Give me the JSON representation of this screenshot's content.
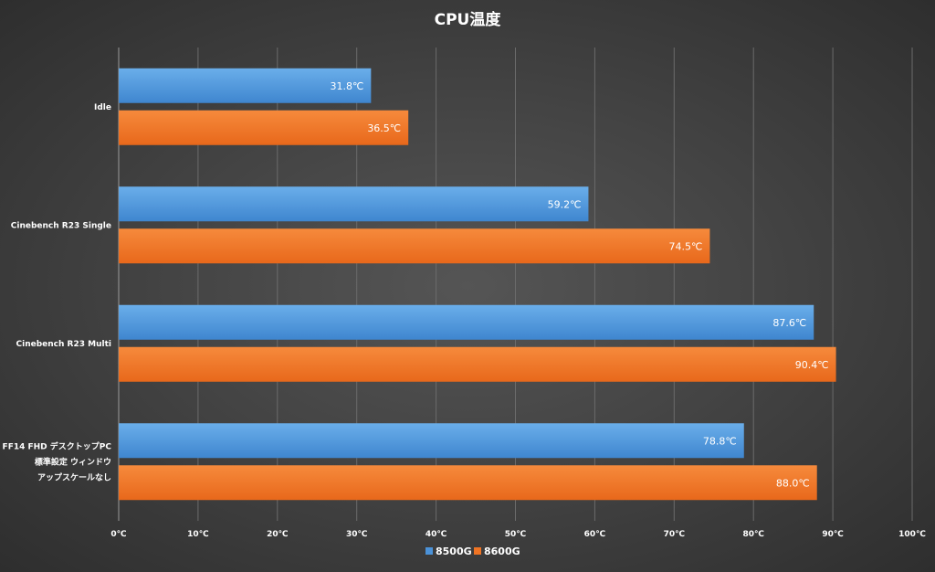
{
  "chart_data": {
    "type": "bar",
    "orientation": "horizontal",
    "title": "CPU温度",
    "categories": [
      [
        "Idle"
      ],
      [
        "Cinebench R23 Single"
      ],
      [
        "Cinebench R23 Multi"
      ],
      [
        "FF14 FHD デスクトップPC",
        "標準設定 ウィンドウ",
        "アップスケールなし"
      ]
    ],
    "series": [
      {
        "name": "8500G",
        "color": "#4b92d8",
        "values": [
          31.8,
          59.2,
          87.6,
          78.8
        ],
        "labels": [
          "31.8℃",
          "59.2℃",
          "87.6℃",
          "78.8℃"
        ]
      },
      {
        "name": "8600G",
        "color": "#ef7424",
        "values": [
          36.5,
          74.5,
          90.4,
          88.0
        ],
        "labels": [
          "36.5℃",
          "74.5℃",
          "90.4℃",
          "88.0℃"
        ]
      }
    ],
    "xlim": [
      0,
      100
    ],
    "ticks": [
      0,
      10,
      20,
      30,
      40,
      50,
      60,
      70,
      80,
      90,
      100
    ],
    "tick_labels": [
      "0℃",
      "10℃",
      "20℃",
      "30℃",
      "40℃",
      "50℃",
      "60℃",
      "70℃",
      "80℃",
      "90℃",
      "100℃"
    ],
    "grid": true,
    "legend": "bottom"
  }
}
